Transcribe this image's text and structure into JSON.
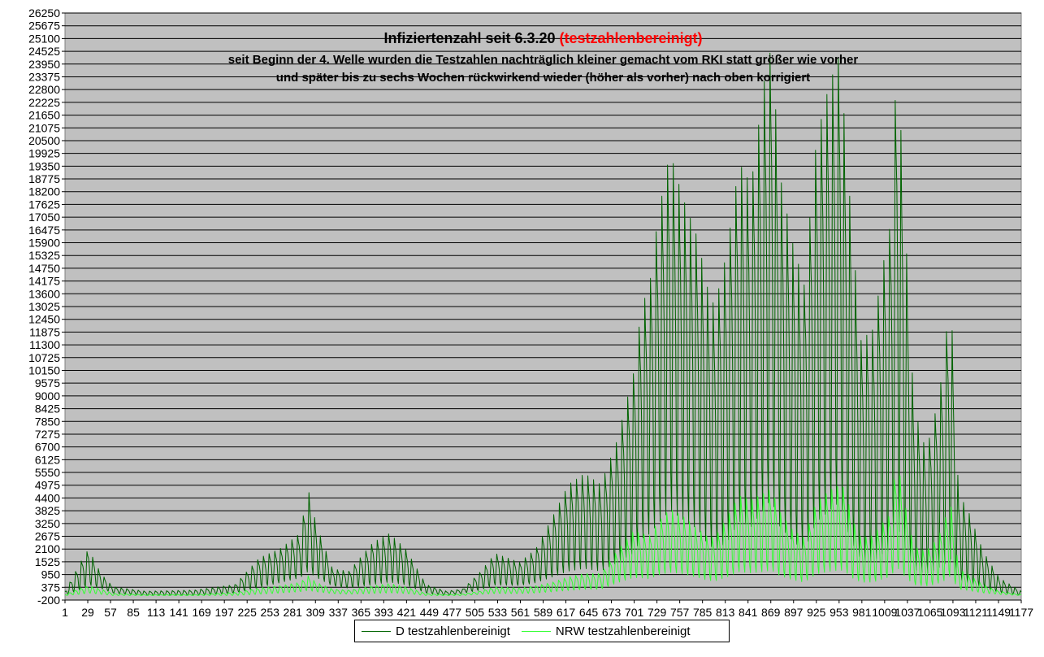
{
  "chart_data": {
    "type": "line",
    "title": "Infiziertenzahl seit 6.3.20",
    "title_highlight": "(testzahlenbereinigt)",
    "subtitle_lines": [
      "seit Beginn der 4. Welle wurden die Testzahlen nachträglich kleiner gemacht vom RKI statt größer wie vorher",
      "und später bis zu sechs Wochen rückwirkend wieder (höher als vorher) nach oben korrigiert"
    ],
    "xlabel": "",
    "ylabel": "",
    "ylim": [
      -200,
      26250
    ],
    "xlim": [
      1,
      1177
    ],
    "y_ticks": [
      -200,
      375,
      950,
      1525,
      2100,
      2675,
      3250,
      3825,
      4400,
      4975,
      5550,
      6125,
      6700,
      7275,
      7850,
      8425,
      9000,
      9575,
      10150,
      10725,
      11300,
      11875,
      12450,
      13025,
      13600,
      14175,
      14750,
      15325,
      15900,
      16475,
      17050,
      17625,
      18200,
      18775,
      19350,
      19925,
      20500,
      21075,
      21650,
      22225,
      22800,
      23375,
      23950,
      24525,
      25100,
      25675,
      26250
    ],
    "x_tick_labels": [
      "1",
      "29",
      "57",
      "85",
      "113",
      "141",
      "169",
      "197",
      "225",
      "253",
      "281",
      "309",
      "337",
      "365",
      "393",
      "421",
      "449",
      "477",
      "505",
      "533",
      "561",
      "589",
      "617",
      "645",
      "673",
      "701",
      "729",
      "757",
      "785",
      "813",
      "841",
      "869",
      "897",
      "925",
      "953",
      "981",
      "1009",
      "1037",
      "1065",
      "1093",
      "1121",
      "1149",
      "1177"
    ],
    "grid": true,
    "legend_position": "bottom-center",
    "series_envelope_note_x": [
      1,
      20,
      30,
      45,
      60,
      100,
      160,
      210,
      240,
      265,
      290,
      300,
      310,
      330,
      350,
      380,
      400,
      420,
      445,
      470,
      490,
      510,
      530,
      560,
      580,
      600,
      620,
      640,
      660,
      680,
      700,
      710,
      720,
      730,
      745,
      760,
      780,
      790,
      800,
      815,
      830,
      845,
      860,
      870,
      880,
      895,
      910,
      925,
      940,
      955,
      960,
      970,
      980,
      995,
      1005,
      1015,
      1025,
      1030,
      1045,
      1060,
      1070,
      1080,
      1090,
      1100,
      1110,
      1130,
      1150,
      1177
    ],
    "series": [
      {
        "name": "D testzahlenbereinigt",
        "color": "#006400",
        "x": [
          1,
          20,
          30,
          45,
          60,
          100,
          160,
          210,
          240,
          265,
          290,
          300,
          310,
          330,
          350,
          380,
          400,
          420,
          445,
          470,
          490,
          510,
          530,
          560,
          580,
          600,
          620,
          640,
          660,
          680,
          700,
          710,
          720,
          730,
          745,
          760,
          780,
          790,
          800,
          815,
          830,
          845,
          860,
          870,
          880,
          895,
          910,
          925,
          940,
          955,
          960,
          970,
          980,
          995,
          1005,
          1015,
          1025,
          1030,
          1045,
          1060,
          1070,
          1080,
          1090,
          1100,
          1110,
          1130,
          1150,
          1177
        ],
        "peak": [
          200,
          1500,
          2100,
          1000,
          400,
          200,
          250,
          500,
          1700,
          2100,
          2800,
          4800,
          3200,
          1200,
          1100,
          2400,
          2800,
          2100,
          500,
          200,
          300,
          1000,
          1900,
          1500,
          2100,
          3500,
          5000,
          5500,
          5000,
          7000,
          10000,
          13000,
          14000,
          17000,
          20000,
          18000,
          16000,
          14000,
          13000,
          15500,
          19500,
          18500,
          23000,
          24800,
          19000,
          16000,
          14000,
          20500,
          22900,
          24600,
          21000,
          16000,
          11500,
          12000,
          14500,
          16500,
          24800,
          20000,
          8500,
          6500,
          8000,
          10000,
          13800,
          4500,
          4000,
          2000,
          800,
          200
        ],
        "trough": [
          0,
          200,
          400,
          300,
          100,
          0,
          0,
          100,
          300,
          500,
          700,
          900,
          700,
          400,
          300,
          400,
          500,
          400,
          100,
          0,
          100,
          200,
          400,
          400,
          500,
          700,
          900,
          1000,
          900,
          1200,
          1500,
          2000,
          2200,
          2500,
          3000,
          2700,
          2300,
          1800,
          1500,
          1700,
          2500,
          2300,
          2900,
          3300,
          2300,
          1800,
          1400,
          2400,
          2800,
          3200,
          2300,
          1600,
          1100,
          1000,
          1200,
          1300,
          2000,
          1600,
          800,
          700,
          800,
          900,
          1000,
          500,
          400,
          300,
          100,
          0
        ]
      },
      {
        "name": "NRW testzahlenbereinigt",
        "color": "#33ff33",
        "x": [
          1,
          20,
          30,
          45,
          60,
          100,
          160,
          210,
          240,
          265,
          290,
          300,
          310,
          330,
          350,
          380,
          400,
          420,
          445,
          470,
          490,
          510,
          530,
          560,
          580,
          600,
          620,
          640,
          660,
          680,
          700,
          710,
          720,
          730,
          745,
          760,
          780,
          790,
          800,
          815,
          830,
          845,
          860,
          870,
          880,
          895,
          910,
          925,
          940,
          955,
          960,
          970,
          980,
          995,
          1005,
          1015,
          1025,
          1030,
          1045,
          1060,
          1070,
          1080,
          1090,
          1100,
          1110,
          1130,
          1150,
          1177
        ],
        "peak": [
          50,
          350,
          450,
          300,
          100,
          50,
          50,
          150,
          350,
          450,
          600,
          900,
          600,
          300,
          250,
          450,
          550,
          400,
          100,
          50,
          80,
          200,
          400,
          350,
          450,
          600,
          850,
          1000,
          1000,
          2000,
          2900,
          2800,
          2700,
          3300,
          3900,
          3600,
          3000,
          2700,
          2600,
          3500,
          4500,
          4300,
          4600,
          4800,
          3800,
          3000,
          2600,
          4200,
          4700,
          5000,
          4800,
          3400,
          2600,
          2700,
          3200,
          3600,
          6300,
          4800,
          2200,
          2000,
          2400,
          3000,
          4300,
          1200,
          1000,
          500,
          200,
          50
        ],
        "trough": [
          0,
          50,
          100,
          50,
          0,
          0,
          0,
          0,
          50,
          100,
          150,
          200,
          150,
          80,
          60,
          80,
          100,
          80,
          0,
          0,
          0,
          50,
          80,
          80,
          100,
          150,
          200,
          250,
          250,
          500,
          700,
          700,
          650,
          800,
          900,
          850,
          700,
          600,
          550,
          700,
          900,
          850,
          900,
          950,
          750,
          600,
          500,
          800,
          900,
          950,
          900,
          650,
          500,
          500,
          600,
          700,
          1000,
          800,
          400,
          350,
          400,
          500,
          700,
          250,
          200,
          100,
          50,
          0
        ]
      }
    ]
  }
}
